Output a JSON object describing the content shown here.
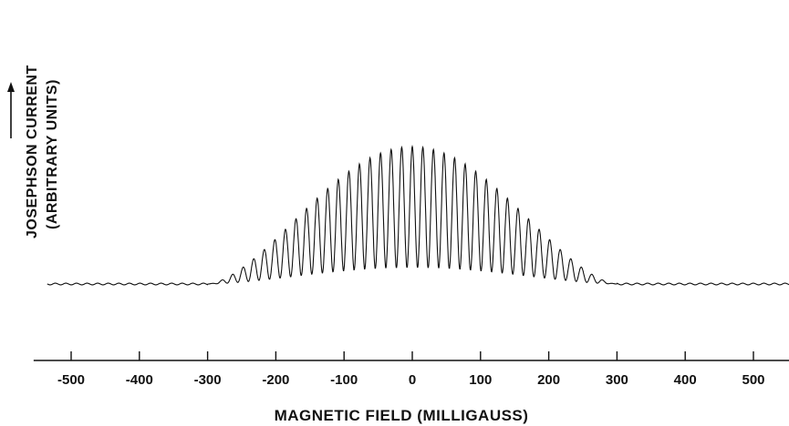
{
  "chart_data": {
    "type": "line",
    "xlabel": "MAGNETIC FIELD (MILLIGAUSS)",
    "ylabel": [
      "JOSEPHSON CURRENT",
      "(ARBITRARY UNITS)"
    ],
    "x_ticks": [
      -500,
      -400,
      -300,
      -200,
      -100,
      0,
      100,
      200,
      300,
      400,
      500
    ],
    "xlim": [
      -555,
      553
    ],
    "ylim": [
      0,
      1
    ],
    "grid": false,
    "y_arrow": true,
    "series": [
      {
        "description_values": "interference pattern: rapid oscillations under a smooth diffraction envelope",
        "envelope_half_width_mG": 300,
        "oscillation_period_mG": 15.5,
        "peak_value": 1.0,
        "points": {
          "x": [
            -540,
            -400,
            -330,
            -300,
            -280,
            -260,
            -240,
            -220,
            -200,
            -180,
            -160,
            -140,
            -120,
            -100,
            -80,
            -60,
            -40,
            -20,
            0,
            20,
            40,
            60,
            80,
            100,
            120,
            140,
            160,
            180,
            200,
            220,
            240,
            260,
            280,
            300,
            330,
            400,
            540
          ],
          "y": [
            0.0,
            0.0,
            0.01,
            0.06,
            0.1,
            0.16,
            0.22,
            0.28,
            0.36,
            0.44,
            0.52,
            0.6,
            0.68,
            0.75,
            0.82,
            0.87,
            0.91,
            0.94,
            0.96,
            0.95,
            0.93,
            0.89,
            0.84,
            0.77,
            0.7,
            0.62,
            0.54,
            0.45,
            0.36,
            0.27,
            0.19,
            0.12,
            0.06,
            0.02,
            0.005,
            0.0,
            0.01
          ]
        }
      }
    ]
  }
}
